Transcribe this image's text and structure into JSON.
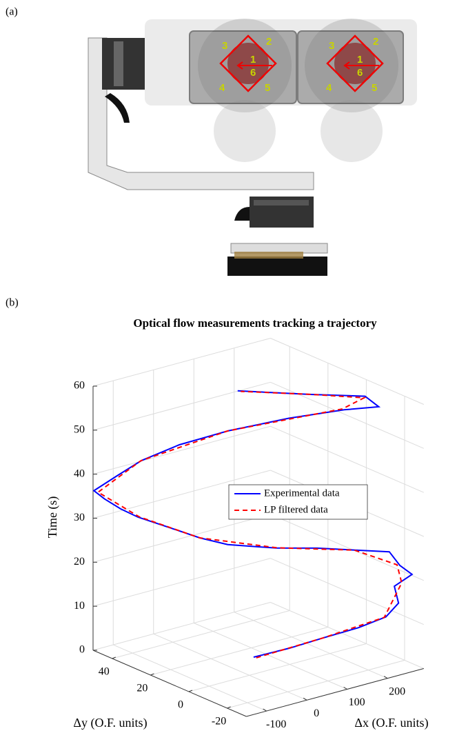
{
  "panel_a": {
    "label": "(a)",
    "sensor_numbers": [
      "1",
      "2",
      "3",
      "4",
      "5",
      "6"
    ]
  },
  "chart_data": {
    "label": "(b)",
    "type": "line3d",
    "title": "Optical flow measurements tracking a trajectory",
    "xlabel": "Δx (O.F. units)",
    "ylabel": "Δy (O.F. units)",
    "zlabel": "Time (s)",
    "xlim": [
      -150,
      290
    ],
    "ylim": [
      -30,
      50
    ],
    "zlim": [
      0,
      60
    ],
    "xticks": [
      -100,
      0,
      100,
      200
    ],
    "yticks": [
      -20,
      0,
      20,
      40
    ],
    "zticks": [
      0,
      10,
      20,
      30,
      40,
      50,
      60
    ],
    "grid": true,
    "series": [
      {
        "name": "Experimental data",
        "color": "#0000ff",
        "dash": "solid",
        "x": [
          58,
          100,
          161,
          199,
          234,
          237,
          217,
          261,
          240,
          233,
          176,
          111,
          42,
          -30,
          -66,
          -104,
          -143,
          -148,
          -150,
          -148,
          -119,
          -87,
          -31,
          61,
          160,
          235,
          283,
          287,
          199,
          85
        ],
        "y": [
          10,
          0,
          -5,
          -15,
          -22,
          -28,
          -30,
          -30,
          -28,
          -24,
          -20,
          -12,
          -5,
          5,
          12,
          20,
          28,
          36,
          44,
          50,
          44,
          38,
          30,
          24,
          13,
          0,
          -8,
          0,
          10,
          24
        ],
        "z": [
          0.8,
          3.7,
          5.5,
          8.7,
          11.6,
          15.8,
          20.5,
          22.1,
          24.3,
          26.8,
          27.8,
          28.4,
          28.8,
          29.5,
          30.6,
          32.4,
          34.2,
          34.7,
          35.5,
          36.2,
          40.0,
          43.8,
          47.5,
          49.5,
          52,
          54.5,
          55.5,
          56.3,
          57,
          58
        ]
      },
      {
        "name": "LP filtered data",
        "color": "#ff0000",
        "dash": "dashed",
        "x": [
          60,
          160,
          230,
          240,
          238,
          170,
          45,
          -66,
          -140,
          -147,
          -88,
          60,
          235,
          280,
          200,
          88
        ],
        "y": [
          9,
          -5,
          -22,
          -29,
          -27,
          -19,
          -5,
          12,
          28,
          48,
          38,
          24,
          1,
          -1,
          10,
          23
        ],
        "z": [
          0.8,
          5.5,
          11.6,
          20.5,
          24.3,
          27.8,
          28.8,
          30.6,
          34.2,
          36.2,
          43.8,
          49.5,
          54.5,
          56.3,
          57,
          58
        ]
      }
    ]
  }
}
